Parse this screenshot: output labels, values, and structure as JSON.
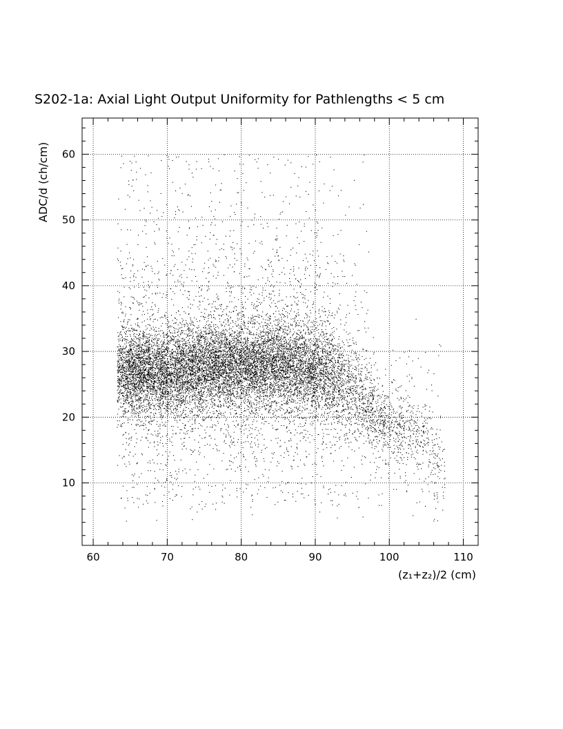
{
  "chart_data": {
    "type": "scatter",
    "title": "S202-1a: Axial Light Output Uniformity for Pathlengths < 5 cm",
    "xlabel": "(z₁+z₂)/2 (cm)",
    "ylabel": "ADC/d (ch/cm)",
    "xlim": [
      58.5,
      112
    ],
    "ylim": [
      0.5,
      65.5
    ],
    "x_ticks": [
      60,
      70,
      80,
      90,
      100,
      110
    ],
    "y_ticks": [
      10,
      20,
      30,
      40,
      50,
      60
    ],
    "x_tick_labels": [
      "60",
      "70",
      "80",
      "90",
      "100",
      "110"
    ],
    "y_tick_labels": [
      "10",
      "20",
      "30",
      "40",
      "50",
      "60"
    ],
    "grid": true,
    "grid_style": "dotted",
    "marker_color": "#000000",
    "density_profile": {
      "x": [
        63.2,
        65,
        70,
        75,
        80,
        85,
        90,
        93,
        95,
        98,
        100,
        103,
        105,
        106.5,
        107.5
      ],
      "y_center": [
        27,
        27,
        27,
        27.5,
        28,
        28,
        27,
        26,
        24,
        21,
        19,
        18,
        17,
        13,
        12
      ],
      "y_spread": [
        4,
        4,
        4,
        4,
        4,
        4,
        4,
        4,
        4,
        4,
        3.5,
        3.5,
        4,
        4,
        3
      ],
      "relative_density": [
        0.7,
        1,
        1,
        1,
        1,
        0.95,
        0.8,
        0.55,
        0.42,
        0.3,
        0.22,
        0.17,
        0.14,
        0.1,
        0.05
      ]
    }
  }
}
